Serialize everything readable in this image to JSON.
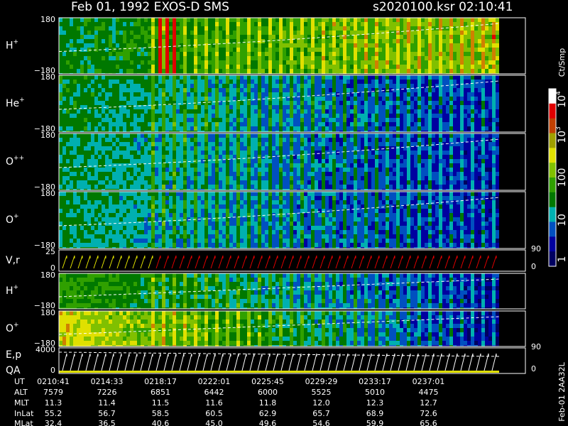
{
  "header": {
    "title": "Feb 01, 1992   EXOS-D SMS",
    "file": "s2020100.ksr  02:10:41"
  },
  "panels": [
    {
      "label": {
        "base": "H",
        "sup": "+"
      },
      "ticks": [
        "180",
        "−180"
      ]
    },
    {
      "label": {
        "base": "He",
        "sup": "+"
      },
      "ticks": [
        "180",
        "−180"
      ]
    },
    {
      "label": {
        "base": "O",
        "sup": "++"
      },
      "ticks": [
        "180",
        "−180"
      ]
    },
    {
      "label": {
        "base": "O",
        "sup": "+"
      },
      "ticks": [
        "180",
        "−180"
      ]
    },
    {
      "label": {
        "base": "V,r",
        "sup": ""
      },
      "ticks": [
        "25",
        "0"
      ],
      "right_ticks": [
        "90",
        "0"
      ]
    },
    {
      "label": {
        "base": "H",
        "sup": "+"
      },
      "ticks": [
        "180",
        "−180"
      ]
    },
    {
      "label": {
        "base": "O",
        "sup": "+"
      },
      "ticks": [
        "180",
        "−180"
      ]
    },
    {
      "label": {
        "base": "E,p",
        "sup": ""
      },
      "label2": "QA",
      "ticks": [
        "4000",
        "0"
      ],
      "right_ticks": [
        "90",
        "0"
      ]
    }
  ],
  "colorbar": {
    "unit": "Ct/Smp",
    "ticks": [
      {
        "base": "10",
        "sup": "4"
      },
      {
        "base": "10",
        "sup": "3"
      },
      {
        "base": "100",
        "sup": ""
      },
      {
        "base": "10",
        "sup": ""
      },
      {
        "base": "1",
        "sup": ""
      }
    ]
  },
  "footer": {
    "rows": [
      {
        "name": "UT",
        "values": [
          "0210:41",
          "0214:33",
          "0218:17",
          "0222:01",
          "0225:45",
          "0229:29",
          "0233:17",
          "0237:01"
        ]
      },
      {
        "name": "ALT",
        "values": [
          "7579",
          "7226",
          "6851",
          "6442",
          "6000",
          "5525",
          "5010",
          "4475"
        ]
      },
      {
        "name": "MLT",
        "values": [
          "11.3",
          "11.4",
          "11.5",
          "11.6",
          "11.8",
          "12.0",
          "12.3",
          "12.7"
        ]
      },
      {
        "name": "InLat",
        "values": [
          "55.2",
          "56.7",
          "58.5",
          "60.5",
          "62.9",
          "65.7",
          "68.9",
          "72.6"
        ]
      },
      {
        "name": "MLat",
        "values": [
          "32.4",
          "36.5",
          "40.6",
          "45.0",
          "49.6",
          "54.6",
          "59.9",
          "65.6"
        ]
      }
    ],
    "stamp": "Feb-01 2AA32L"
  }
}
